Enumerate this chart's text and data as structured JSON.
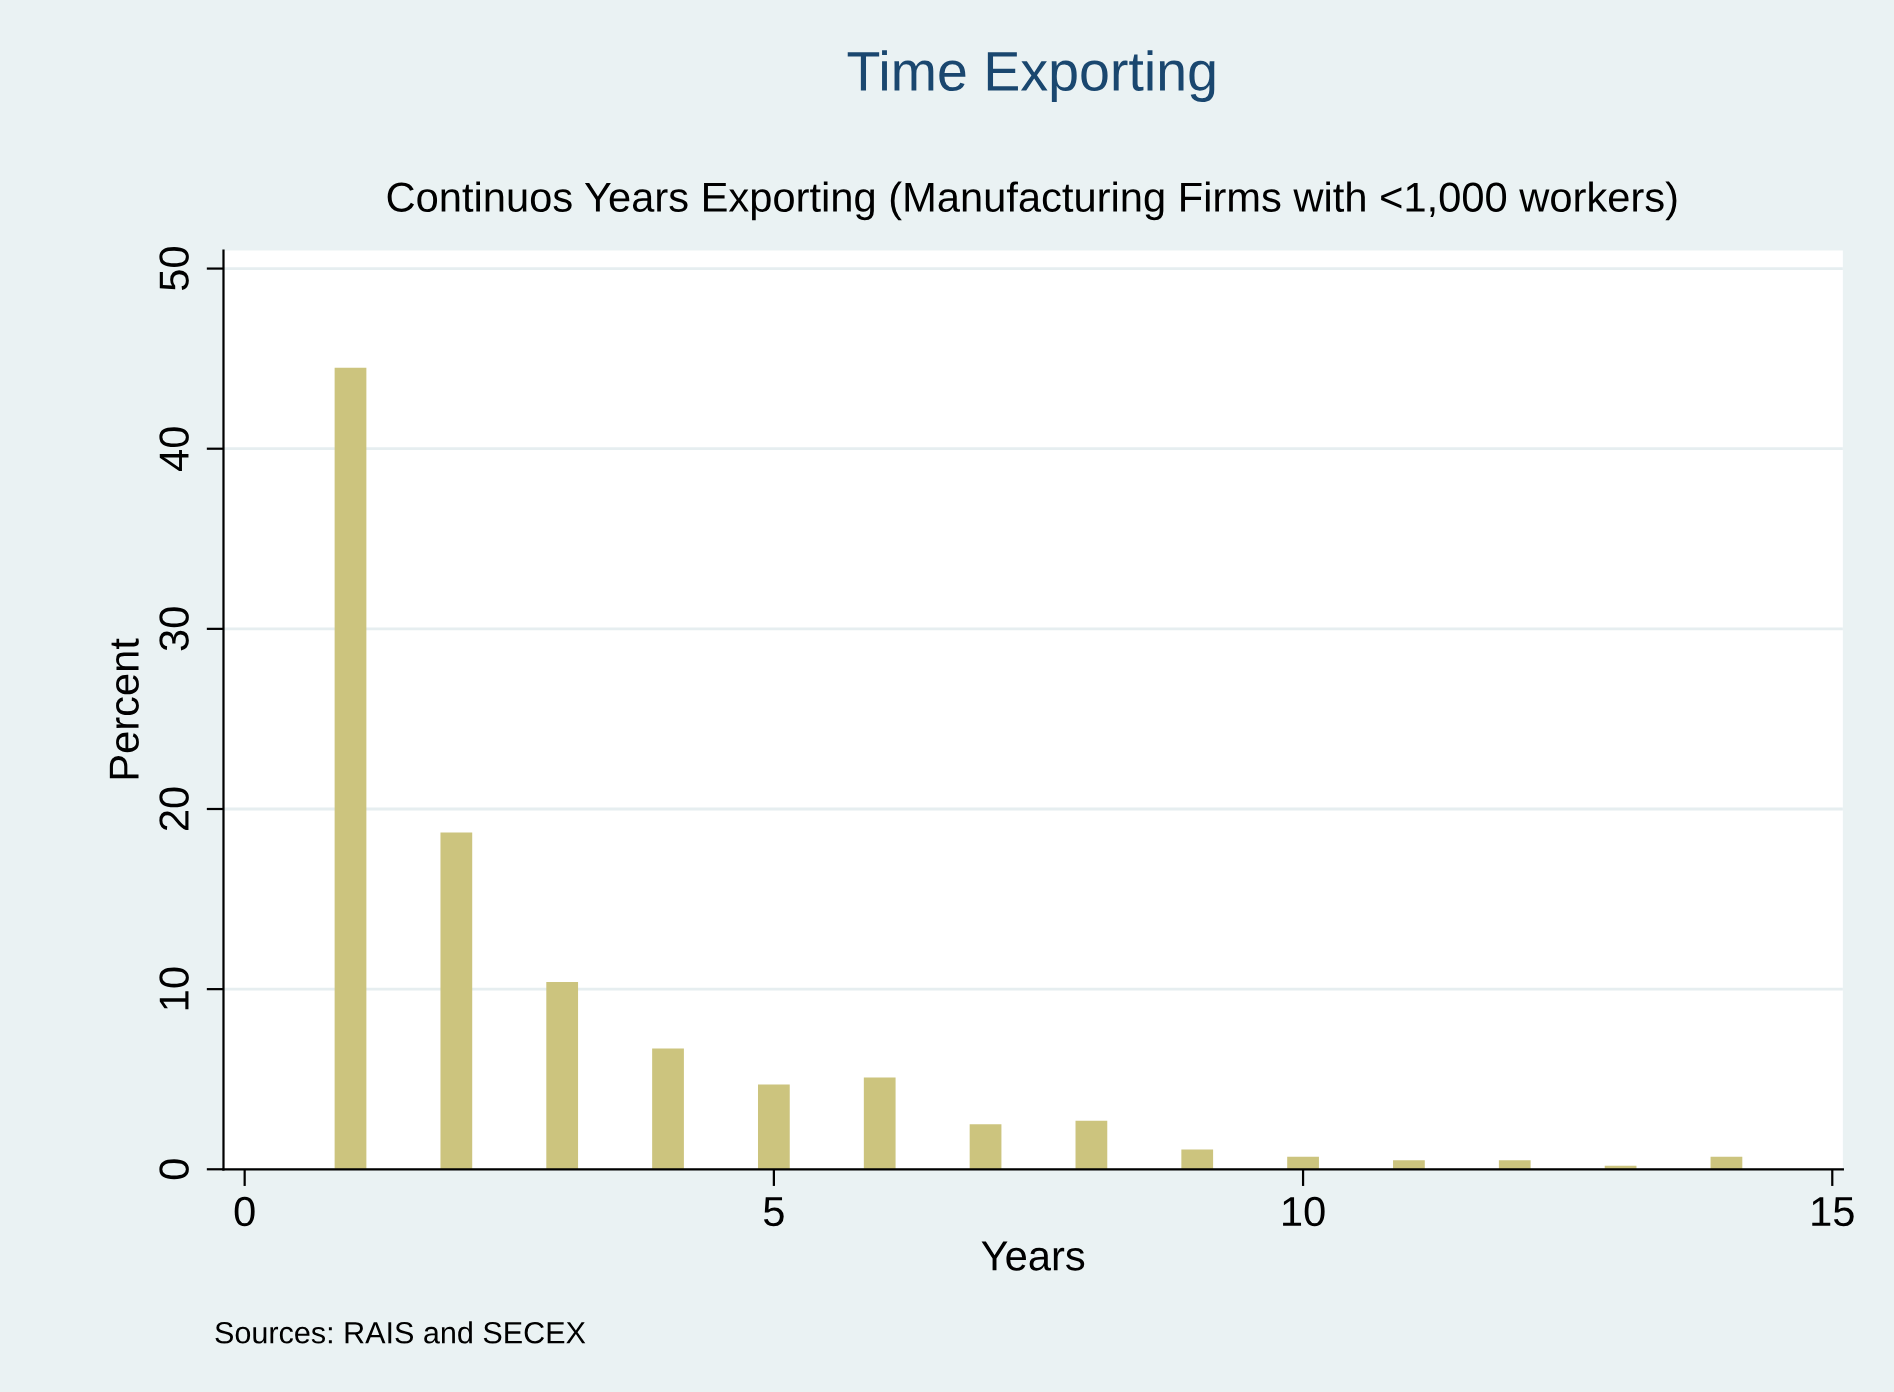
{
  "chart_data": {
    "type": "bar",
    "title": "Time Exporting",
    "subtitle": "Continuos Years Exporting (Manufacturing Firms with <1,000 workers)",
    "xlabel": "Years",
    "ylabel": "Percent",
    "x": [
      1,
      2,
      3,
      4,
      5,
      6,
      7,
      8,
      9,
      10,
      11,
      12,
      13,
      14
    ],
    "series": [
      {
        "color": "#ccc47e",
        "values": [
          44.5,
          18.7,
          10.4,
          6.7,
          4.7,
          5.1,
          2.5,
          2.7,
          1.1,
          0.7,
          0.5,
          0.5,
          0.2,
          0.7
        ]
      }
    ],
    "xlim": [
      -0.2,
      15.1
    ],
    "xticks": [
      0,
      5,
      10,
      15
    ],
    "ylim": [
      0,
      51
    ],
    "yticks": [
      0,
      10,
      20,
      30,
      40,
      50
    ],
    "grid": "y",
    "annotations": [
      "Sources: RAIS and SECEX"
    ]
  }
}
